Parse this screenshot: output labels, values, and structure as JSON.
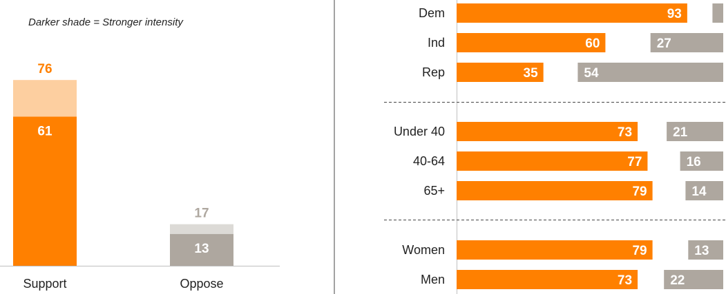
{
  "colors": {
    "support_strong": "#FF8000",
    "support_light": "#FDCFA0",
    "oppose_strong": "#AEA79F",
    "oppose_light": "#DCDAD6",
    "axis": "#BFBFBF",
    "divider": "#444444",
    "text": "#222222"
  },
  "chart_data": [
    {
      "type": "bar",
      "stacked": true,
      "note": "Darker shade = Stronger intensity",
      "categories": [
        "Support",
        "Oppose"
      ],
      "strong": [
        61,
        13
      ],
      "total": [
        76,
        17
      ],
      "ylim": [
        0,
        100
      ]
    },
    {
      "type": "bar",
      "orientation": "horizontal",
      "xlim": [
        0,
        100
      ],
      "groups": [
        {
          "rows": [
            {
              "label": "Dem",
              "support": 93,
              "oppose": 4,
              "oppose_label": ""
            },
            {
              "label": "Ind",
              "support": 60,
              "oppose": 27,
              "oppose_label": "27"
            },
            {
              "label": "Rep",
              "support": 35,
              "oppose": 54,
              "oppose_label": "54"
            }
          ]
        },
        {
          "rows": [
            {
              "label": "Under 40",
              "support": 73,
              "oppose": 21,
              "oppose_label": "21"
            },
            {
              "label": "40-64",
              "support": 77,
              "oppose": 16,
              "oppose_label": "16"
            },
            {
              "label": "65+",
              "support": 79,
              "oppose": 14,
              "oppose_label": "14"
            }
          ]
        },
        {
          "rows": [
            {
              "label": "Women",
              "support": 79,
              "oppose": 13,
              "oppose_label": "13"
            },
            {
              "label": "Men",
              "support": 73,
              "oppose": 22,
              "oppose_label": "22"
            }
          ]
        }
      ]
    }
  ]
}
